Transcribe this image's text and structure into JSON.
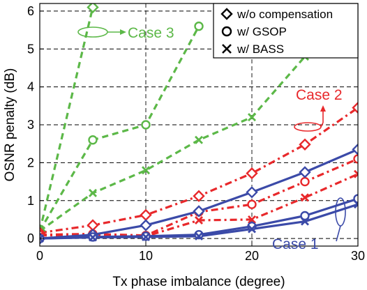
{
  "chart_data": {
    "type": "line",
    "xlabel": "Tx phase imbalance (degree)",
    "ylabel": "OSNR penalty (dB)",
    "xlim": [
      0,
      30
    ],
    "ylim": [
      -0.2,
      6.2
    ],
    "xticks": [
      0,
      10,
      20,
      30
    ],
    "yticks": [
      0,
      1,
      2,
      3,
      4,
      5,
      6
    ],
    "grid": true,
    "legend": {
      "placement": "top-right",
      "entries": [
        {
          "marker": "diamond",
          "label": "w/o compensation"
        },
        {
          "marker": "circle",
          "label": "w/ GSOP"
        },
        {
          "marker": "cross",
          "label": "w/ BASS"
        }
      ]
    },
    "colors": {
      "case1": "#3b4aa8",
      "case2": "#e8282b",
      "case3": "#5cb848"
    },
    "series": [
      {
        "group": "case3",
        "marker": "diamond",
        "dash": "dash",
        "x": [
          0,
          5
        ],
        "y": [
          0.2,
          6.1
        ]
      },
      {
        "group": "case3",
        "marker": "circle",
        "dash": "dash",
        "x": [
          0,
          5,
          10,
          15
        ],
        "y": [
          0.2,
          2.6,
          3.0,
          5.6
        ]
      },
      {
        "group": "case3",
        "marker": "cross",
        "dash": "dash",
        "x": [
          0,
          5,
          10,
          15,
          20,
          25
        ],
        "y": [
          0.2,
          1.2,
          1.8,
          2.6,
          3.2,
          4.8
        ]
      },
      {
        "group": "case2",
        "marker": "diamond",
        "dash": "dashdot",
        "x": [
          0,
          5,
          10,
          15,
          20,
          25,
          30
        ],
        "y": [
          0.15,
          0.35,
          0.62,
          1.12,
          1.72,
          2.48,
          3.45
        ]
      },
      {
        "group": "case2",
        "marker": "circle",
        "dash": "dashdot",
        "x": [
          0,
          5,
          10,
          15,
          20,
          25,
          30
        ],
        "y": [
          0.1,
          0.12,
          0.08,
          0.7,
          0.9,
          1.5,
          2.1
        ]
      },
      {
        "group": "case2",
        "marker": "cross",
        "dash": "dashdot",
        "x": [
          0,
          5,
          10,
          15,
          20,
          25,
          30
        ],
        "y": [
          0.08,
          0.1,
          0.06,
          0.48,
          0.5,
          1.08,
          1.7
        ]
      },
      {
        "group": "case1",
        "marker": "diamond",
        "dash": "solid",
        "x": [
          0,
          5,
          10,
          15,
          20,
          25,
          30
        ],
        "y": [
          0.0,
          0.1,
          0.35,
          0.72,
          1.22,
          1.75,
          2.35
        ]
      },
      {
        "group": "case1",
        "marker": "circle",
        "dash": "solid",
        "x": [
          0,
          5,
          10,
          15,
          20,
          25,
          30
        ],
        "y": [
          0.0,
          0.04,
          0.06,
          0.1,
          0.32,
          0.6,
          1.05
        ]
      },
      {
        "group": "case1",
        "marker": "cross",
        "dash": "solid",
        "x": [
          0,
          5,
          10,
          15,
          20,
          25,
          30
        ],
        "y": [
          0.0,
          0.03,
          0.04,
          0.06,
          0.25,
          0.45,
          0.9
        ]
      }
    ],
    "annotations": [
      {
        "text": "Case 3",
        "group": "case3"
      },
      {
        "text": "Case 2",
        "group": "case2"
      },
      {
        "text": "Case 1",
        "group": "case1"
      }
    ]
  }
}
